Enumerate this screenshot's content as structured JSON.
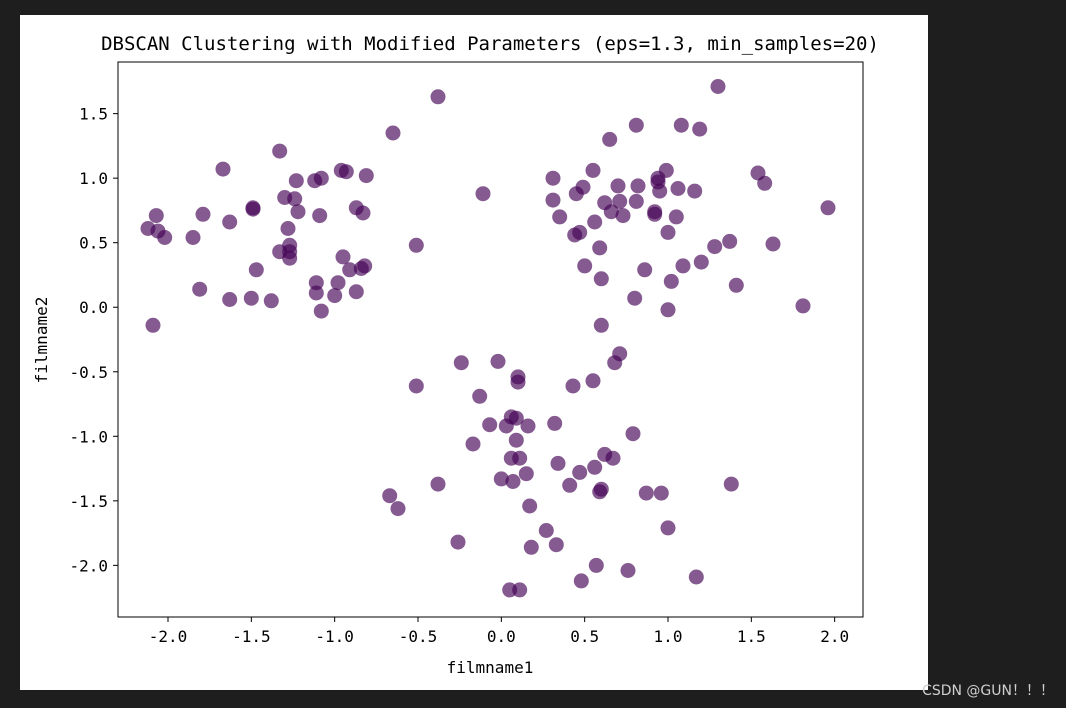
{
  "watermark": "CSDN @GUN！！！",
  "chart_data": {
    "type": "scatter",
    "title": "DBSCAN Clustering with Modified Parameters (eps=1.3, min_samples=20)",
    "xlabel": "filmname1",
    "ylabel": "filmname2",
    "xlim": [
      -2.3,
      2.17
    ],
    "ylim": [
      -2.4,
      1.9
    ],
    "xticks": [
      -2.0,
      -1.5,
      -1.0,
      -0.5,
      0.0,
      0.5,
      1.0,
      1.5,
      2.0
    ],
    "xtick_labels": [
      "-2.0",
      "-1.5",
      "-1.0",
      "-0.5",
      "0.0",
      "0.5",
      "1.0",
      "1.5",
      "2.0"
    ],
    "yticks": [
      -2.0,
      -1.5,
      -1.0,
      -0.5,
      0.0,
      0.5,
      1.0,
      1.5
    ],
    "ytick_labels": [
      "-2.0",
      "-1.5",
      "-1.0",
      "-0.5",
      "0.0",
      "0.5",
      "1.0",
      "1.5"
    ],
    "grid": false,
    "point_color": "#440154",
    "point_alpha": 0.65,
    "points": [
      [
        -2.12,
        0.61
      ],
      [
        -2.09,
        -0.14
      ],
      [
        -2.07,
        0.71
      ],
      [
        -2.06,
        0.59
      ],
      [
        -2.02,
        0.54
      ],
      [
        -1.85,
        0.54
      ],
      [
        -1.81,
        0.14
      ],
      [
        -1.79,
        0.72
      ],
      [
        -1.67,
        1.07
      ],
      [
        -1.63,
        0.66
      ],
      [
        -1.63,
        0.06
      ],
      [
        -1.5,
        0.07
      ],
      [
        -1.49,
        0.76
      ],
      [
        -1.49,
        0.77
      ],
      [
        -1.47,
        0.29
      ],
      [
        -1.38,
        0.05
      ],
      [
        -1.33,
        1.21
      ],
      [
        -1.33,
        0.43
      ],
      [
        -1.3,
        0.85
      ],
      [
        -1.28,
        0.61
      ],
      [
        -1.27,
        0.48
      ],
      [
        -1.27,
        0.43
      ],
      [
        -1.27,
        0.38
      ],
      [
        -1.24,
        0.84
      ],
      [
        -1.23,
        0.98
      ],
      [
        -1.22,
        0.74
      ],
      [
        -1.12,
        0.98
      ],
      [
        -1.11,
        0.19
      ],
      [
        -1.11,
        0.11
      ],
      [
        -1.09,
        0.71
      ],
      [
        -1.08,
        1.0
      ],
      [
        -1.08,
        -0.03
      ],
      [
        -1.0,
        0.09
      ],
      [
        -0.98,
        0.19
      ],
      [
        -0.96,
        1.06
      ],
      [
        -0.95,
        0.39
      ],
      [
        -0.93,
        1.05
      ],
      [
        -0.91,
        0.29
      ],
      [
        -0.87,
        0.12
      ],
      [
        -0.87,
        0.77
      ],
      [
        -0.84,
        0.3
      ],
      [
        -0.83,
        0.73
      ],
      [
        -0.82,
        0.32
      ],
      [
        -0.81,
        1.02
      ],
      [
        -0.65,
        1.35
      ],
      [
        -0.51,
        0.48
      ],
      [
        -0.38,
        1.63
      ],
      [
        -0.11,
        0.88
      ],
      [
        0.31,
        0.83
      ],
      [
        0.31,
        1.0
      ],
      [
        0.35,
        0.7
      ],
      [
        0.44,
        0.56
      ],
      [
        0.45,
        0.88
      ],
      [
        0.47,
        0.58
      ],
      [
        0.49,
        0.93
      ],
      [
        0.5,
        0.32
      ],
      [
        0.55,
        1.06
      ],
      [
        0.56,
        0.66
      ],
      [
        0.59,
        0.46
      ],
      [
        0.6,
        0.22
      ],
      [
        0.62,
        0.81
      ],
      [
        0.65,
        1.3
      ],
      [
        0.66,
        0.74
      ],
      [
        0.7,
        0.94
      ],
      [
        0.71,
        0.82
      ],
      [
        0.73,
        0.71
      ],
      [
        0.8,
        0.07
      ],
      [
        0.81,
        1.41
      ],
      [
        0.81,
        0.82
      ],
      [
        0.82,
        0.94
      ],
      [
        0.86,
        0.29
      ],
      [
        0.92,
        0.74
      ],
      [
        0.92,
        0.72
      ],
      [
        0.94,
        0.97
      ],
      [
        0.94,
        1.0
      ],
      [
        0.95,
        0.9
      ],
      [
        0.99,
        1.06
      ],
      [
        1.0,
        0.58
      ],
      [
        1.0,
        -0.02
      ],
      [
        1.02,
        0.2
      ],
      [
        1.05,
        0.7
      ],
      [
        1.06,
        0.92
      ],
      [
        1.08,
        1.41
      ],
      [
        1.09,
        0.32
      ],
      [
        1.16,
        0.9
      ],
      [
        1.19,
        1.38
      ],
      [
        1.2,
        0.35
      ],
      [
        1.28,
        0.47
      ],
      [
        1.3,
        1.71
      ],
      [
        1.37,
        0.51
      ],
      [
        1.41,
        0.17
      ],
      [
        1.54,
        1.04
      ],
      [
        1.58,
        0.96
      ],
      [
        1.63,
        0.49
      ],
      [
        1.81,
        0.01
      ],
      [
        1.96,
        0.77
      ],
      [
        -0.51,
        -0.61
      ],
      [
        -0.38,
        -1.37
      ],
      [
        -0.26,
        -1.82
      ],
      [
        -0.24,
        -0.43
      ],
      [
        -0.17,
        -1.06
      ],
      [
        -0.13,
        -0.69
      ],
      [
        -0.07,
        -0.91
      ],
      [
        -0.02,
        -0.42
      ],
      [
        0.0,
        -1.33
      ],
      [
        0.03,
        -0.92
      ],
      [
        0.05,
        -2.19
      ],
      [
        0.06,
        -0.85
      ],
      [
        0.06,
        -1.17
      ],
      [
        0.07,
        -1.35
      ],
      [
        0.09,
        -0.86
      ],
      [
        0.09,
        -1.03
      ],
      [
        0.1,
        -0.54
      ],
      [
        0.1,
        -0.58
      ],
      [
        0.11,
        -1.17
      ],
      [
        0.11,
        -2.19
      ],
      [
        0.15,
        -1.29
      ],
      [
        0.16,
        -0.92
      ],
      [
        0.17,
        -1.54
      ],
      [
        0.18,
        -1.86
      ],
      [
        0.27,
        -1.73
      ],
      [
        0.32,
        -0.9
      ],
      [
        0.33,
        -1.84
      ],
      [
        0.34,
        -1.21
      ],
      [
        0.41,
        -1.38
      ],
      [
        0.43,
        -0.61
      ],
      [
        0.47,
        -1.28
      ],
      [
        0.48,
        -2.12
      ],
      [
        0.55,
        -0.57
      ],
      [
        0.56,
        -1.24
      ],
      [
        0.57,
        -2.0
      ],
      [
        0.59,
        -1.43
      ],
      [
        0.6,
        -1.41
      ],
      [
        0.6,
        -0.14
      ],
      [
        0.62,
        -1.14
      ],
      [
        0.67,
        -1.17
      ],
      [
        0.68,
        -0.43
      ],
      [
        0.71,
        -0.36
      ],
      [
        0.76,
        -2.04
      ],
      [
        0.79,
        -0.98
      ],
      [
        0.87,
        -1.44
      ],
      [
        0.96,
        -1.44
      ],
      [
        1.0,
        -1.71
      ],
      [
        1.17,
        -2.09
      ],
      [
        1.38,
        -1.37
      ],
      [
        -0.67,
        -1.46
      ],
      [
        -0.62,
        -1.56
      ]
    ]
  }
}
